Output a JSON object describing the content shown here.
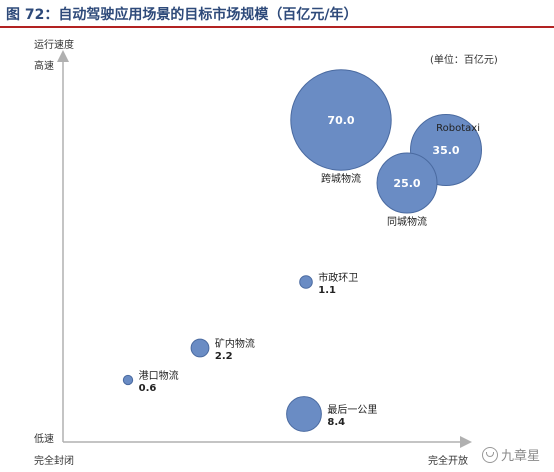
{
  "figure_title": "图 72：自动驾驶应用场景的目标市场规模（百亿元/年）",
  "watermark": "九章星",
  "colors": {
    "bubble_fill": "#6a8cc4",
    "bubble_stroke": "#4a6aa0",
    "axis": "#b0b0b0",
    "title": "#2e4a7a",
    "title_rule": "#b22222"
  },
  "chart_data": {
    "type": "scatter",
    "title": "",
    "unit_label": "(单位：百亿元)",
    "ylabel": "运行速度",
    "y_axis_ticks": {
      "high": "高速",
      "low": "低速"
    },
    "x_axis_ticks": {
      "left": "完全封闭",
      "right": "完全开放"
    },
    "grid": false,
    "points": [
      {
        "name": "跨城物流",
        "value": 70.0,
        "value_label": "70.0",
        "value_inside": true,
        "label_pos": "below"
      },
      {
        "name": "Robotaxi",
        "value": 35.0,
        "value_label": "35.0",
        "value_inside": true,
        "label_pos": "above-right"
      },
      {
        "name": "同城物流",
        "value": 25.0,
        "value_label": "25.0",
        "value_inside": true,
        "label_pos": "below"
      },
      {
        "name": "市政环卫",
        "value": 1.1,
        "value_label": "1.1",
        "value_inside": false,
        "label_pos": "right"
      },
      {
        "name": "矿内物流",
        "value": 2.2,
        "value_label": "2.2",
        "value_inside": false,
        "label_pos": "right"
      },
      {
        "name": "港口物流",
        "value": 0.6,
        "value_label": "0.6",
        "value_inside": false,
        "label_pos": "right"
      },
      {
        "name": "最后一公里",
        "value": 8.4,
        "value_label": "8.4",
        "value_inside": false,
        "label_pos": "right"
      }
    ]
  }
}
